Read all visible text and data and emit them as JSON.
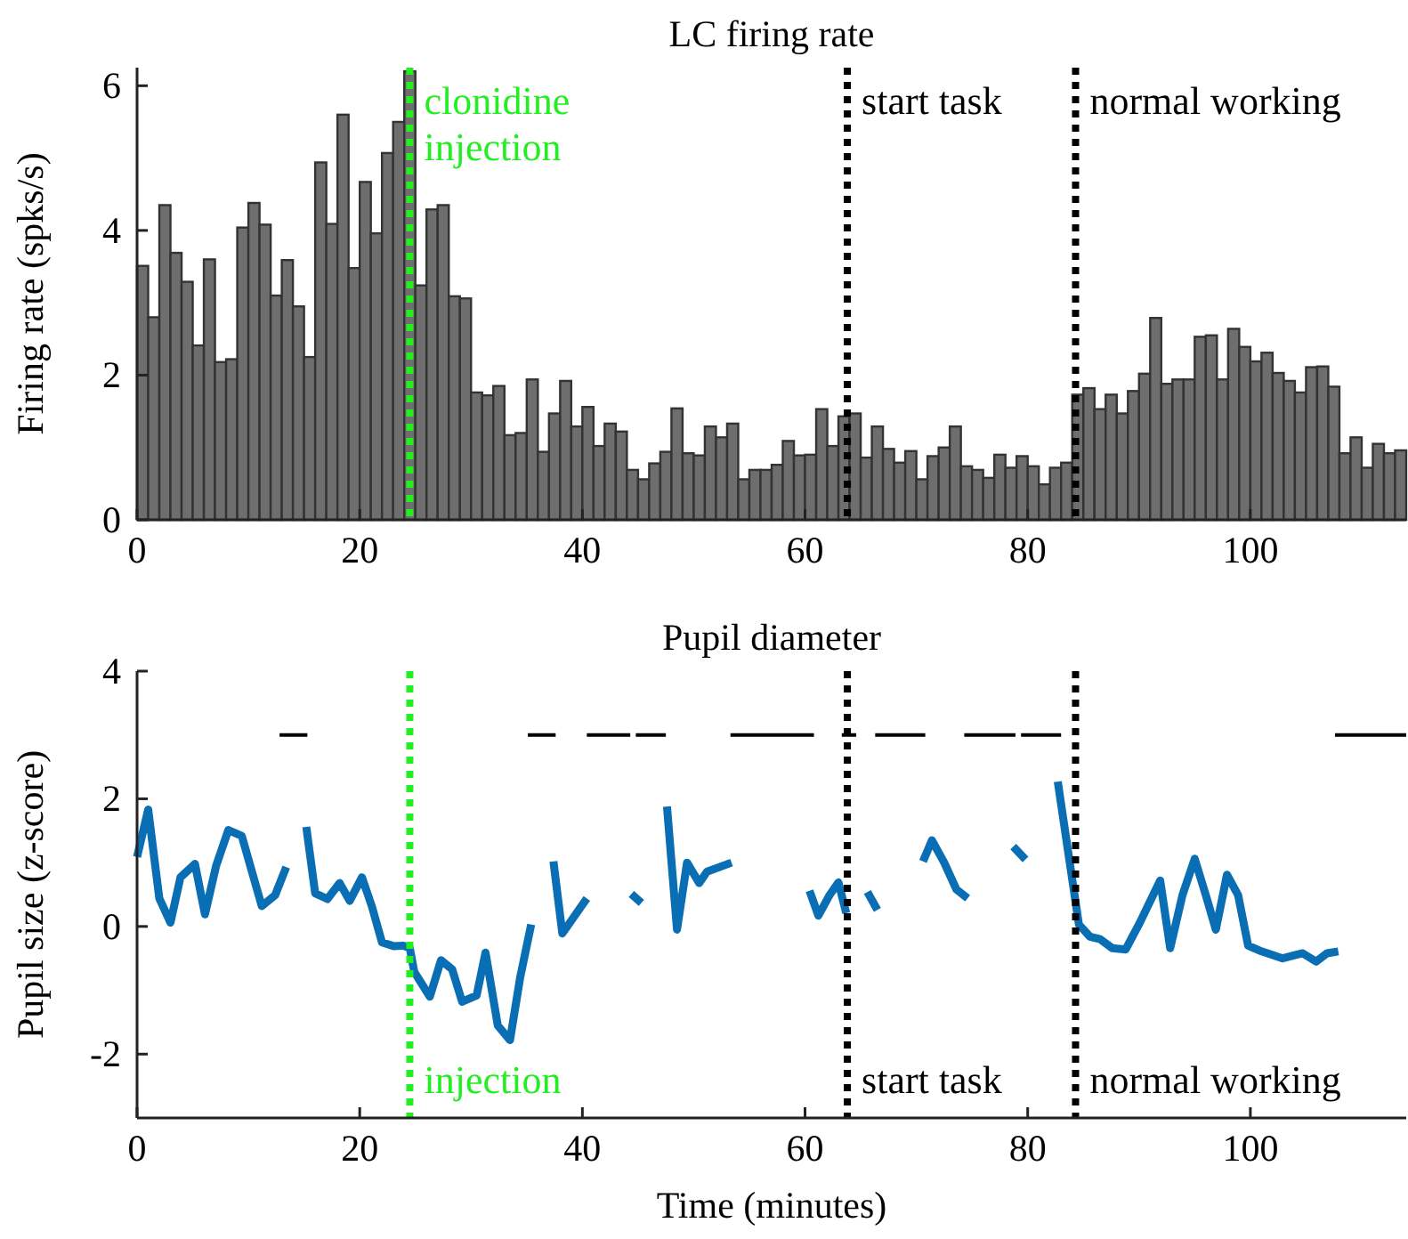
{
  "chart_data": [
    {
      "type": "histogram",
      "title": "LC firing rate",
      "ylabel": "Firing rate (spks/s)",
      "color": "#6e6e6e",
      "bins": [
        0,
        1,
        2,
        3,
        4,
        5,
        6,
        7,
        8,
        9,
        10,
        11,
        12,
        13,
        14,
        15,
        16,
        17,
        18,
        19,
        20,
        21,
        22,
        23,
        24,
        25,
        26,
        27,
        28,
        29,
        30,
        31,
        32,
        33,
        34,
        35,
        36,
        37,
        38,
        39,
        40,
        41,
        42,
        43,
        44,
        45,
        46,
        47,
        48,
        49,
        50,
        51,
        52,
        53,
        54,
        55,
        56,
        57,
        58,
        59,
        60,
        61,
        62,
        63,
        64,
        65,
        66,
        67,
        68,
        69,
        70,
        71,
        72,
        73,
        74,
        75,
        76,
        77,
        78,
        79,
        80,
        81,
        82,
        83,
        84,
        85,
        86,
        87,
        88,
        89,
        90,
        91,
        92,
        93,
        94,
        95,
        96,
        97,
        98,
        99,
        100,
        101,
        102,
        103,
        104,
        105,
        106,
        107,
        108,
        109,
        110,
        111,
        112,
        113,
        114
      ],
      "values": [
        3.51,
        2.8,
        4.35,
        3.69,
        3.29,
        2.41,
        3.6,
        2.18,
        2.22,
        4.04,
        4.38,
        4.08,
        3.1,
        3.59,
        2.95,
        2.25,
        4.94,
        4.09,
        5.6,
        3.48,
        4.67,
        3.96,
        5.07,
        5.5,
        6.2,
        3.24,
        4.29,
        4.35,
        3.09,
        3.06,
        1.76,
        1.72,
        1.85,
        1.17,
        1.2,
        1.94,
        0.94,
        1.47,
        1.92,
        1.29,
        1.56,
        1.02,
        1.33,
        1.22,
        0.69,
        0.56,
        0.78,
        0.94,
        1.54,
        0.92,
        0.89,
        1.29,
        1.14,
        1.33,
        0.56,
        0.69,
        0.69,
        0.76,
        1.09,
        0.89,
        0.9,
        1.53,
        1.02,
        1.43,
        1.47,
        0.86,
        1.29,
        0.98,
        0.79,
        0.95,
        0.56,
        0.88,
        1.0,
        1.29,
        0.74,
        0.69,
        0.58,
        0.9,
        0.72,
        0.88,
        0.74,
        0.49,
        0.72,
        0.79,
        1.73,
        1.82,
        1.53,
        1.73,
        1.47,
        1.78,
        2.02,
        2.79,
        1.88,
        1.94,
        1.94,
        2.53,
        2.55,
        1.94,
        2.64,
        2.39,
        2.19,
        2.31,
        2.03,
        1.92,
        1.76,
        2.11,
        2.12,
        1.84,
        0.92,
        1.14,
        0.72,
        1.05,
        0.92,
        0.96
      ],
      "xlim": [
        0,
        114
      ],
      "xticks": [
        0,
        20,
        40,
        60,
        80,
        100
      ],
      "ylim": [
        0,
        6.25
      ],
      "yticks": [
        0,
        2,
        4,
        6
      ],
      "ref_lines": [
        {
          "axis": "x",
          "value": 24.5,
          "label": "clonidine\ninjection",
          "color": "#22ee22",
          "line_style": "dotted"
        },
        {
          "axis": "x",
          "value": 63.8,
          "label": "start task",
          "color": "#000000",
          "line_style": "dotted"
        },
        {
          "axis": "x",
          "value": 84.3,
          "label": "normal working",
          "color": "#000000",
          "line_style": "dotted"
        }
      ]
    },
    {
      "type": "line",
      "title": "Pupil diameter",
      "xlabel": "Time (minutes)",
      "ylabel": "Pupil size (z-score)",
      "series": [
        {
          "color": "#0a6eb4",
          "line_style": "solid",
          "x": [
            0,
            1,
            2,
            3,
            3.9,
            5.2,
            6.1,
            7.1,
            8.2,
            9.4,
            11.2,
            12.4,
            13.4,
            14.3,
            15.2,
            16,
            17.1,
            18.2,
            19.1,
            20.2,
            21.1,
            22,
            23.1,
            23.9,
            24.5,
            24.9,
            26.3,
            27.3,
            28.3,
            29.2,
            30.5,
            31.3,
            32.4,
            33.5,
            34.4,
            35.4,
            36.4,
            37.4,
            38.2,
            40.4,
            42.4,
            44.4,
            45.3,
            46.5,
            47.6,
            48.5,
            49.4,
            50.5,
            51.2,
            53.4,
            57,
            60.4,
            61.2,
            62.2,
            63,
            63.7,
            64.6,
            65.6,
            66.5,
            68.5,
            70.6,
            71.4,
            72.5,
            73.6,
            74.6,
            76.6,
            78.7,
            79.8,
            81.2,
            82.7,
            84.6,
            85.6,
            86.5,
            87.6,
            88.8,
            90.1,
            91.9,
            92.8,
            93.9,
            95,
            96,
            96.9,
            97.9,
            98.9,
            99.8,
            101,
            102.9,
            104.7,
            105.9,
            106.9,
            107.9
          ],
          "values": [
            1.09,
            1.83,
            0.44,
            0.06,
            0.77,
            0.98,
            0.19,
            0.95,
            1.51,
            1.42,
            0.32,
            0.49,
            0.93,
            null,
            1.56,
            0.52,
            0.43,
            0.68,
            0.4,
            0.77,
            0.31,
            -0.25,
            -0.31,
            -0.3,
            -0.34,
            -0.71,
            -1.1,
            -0.53,
            -0.67,
            -1.18,
            -1.08,
            -0.41,
            -1.55,
            -1.78,
            -0.81,
            0.03,
            null,
            1.02,
            -0.11,
            0.44,
            null,
            0.51,
            0.37,
            null,
            1.88,
            -0.05,
            1.0,
            0.68,
            0.86,
            1.0,
            null,
            0.56,
            0.17,
            0.49,
            0.69,
            0.21,
            null,
            0.54,
            0.26,
            null,
            1.02,
            1.35,
            1.0,
            0.58,
            0.44,
            null,
            1.25,
            1.05,
            null,
            2.27,
            0.03,
            -0.16,
            -0.2,
            -0.34,
            -0.36,
            0.07,
            0.72,
            -0.34,
            0.49,
            1.06,
            0.49,
            -0.05,
            0.81,
            0.49,
            -0.3,
            -0.39,
            -0.5,
            -0.42,
            -0.55,
            -0.42,
            -0.39
          ]
        },
        {
          "color": "#000000",
          "line_style": "solid",
          "x": [
            12.8,
            15.3,
            25,
            35.1,
            37.6,
            39,
            40.4,
            44.3,
            44.5,
            44.8,
            47.5,
            50,
            53.3,
            60.8,
            62,
            63.3,
            64.6,
            65.5,
            66.3,
            70.8,
            72.5,
            74.3,
            78.9,
            79.1,
            79.4,
            83,
            95,
            107.6,
            114
          ],
          "values": [
            3,
            3,
            null,
            3,
            3,
            null,
            3,
            3,
            null,
            3,
            3,
            null,
            3,
            3,
            null,
            3,
            3,
            null,
            3,
            3,
            null,
            3,
            3,
            null,
            3,
            3,
            null,
            3,
            3
          ]
        }
      ],
      "xlim": [
        0,
        114
      ],
      "xticks": [
        0,
        20,
        40,
        60,
        80,
        100
      ],
      "ylim": [
        -3,
        4
      ],
      "yticks": [
        -2,
        0,
        2,
        4
      ],
      "ref_lines": [
        {
          "axis": "x",
          "value": 24.5,
          "label": "injection",
          "color": "#22ee22",
          "line_style": "dotted"
        },
        {
          "axis": "x",
          "value": 63.8,
          "label": "start task",
          "color": "#000000",
          "line_style": "dotted"
        },
        {
          "axis": "x",
          "value": 84.3,
          "label": "normal working",
          "color": "#000000",
          "line_style": "dotted"
        }
      ]
    }
  ]
}
